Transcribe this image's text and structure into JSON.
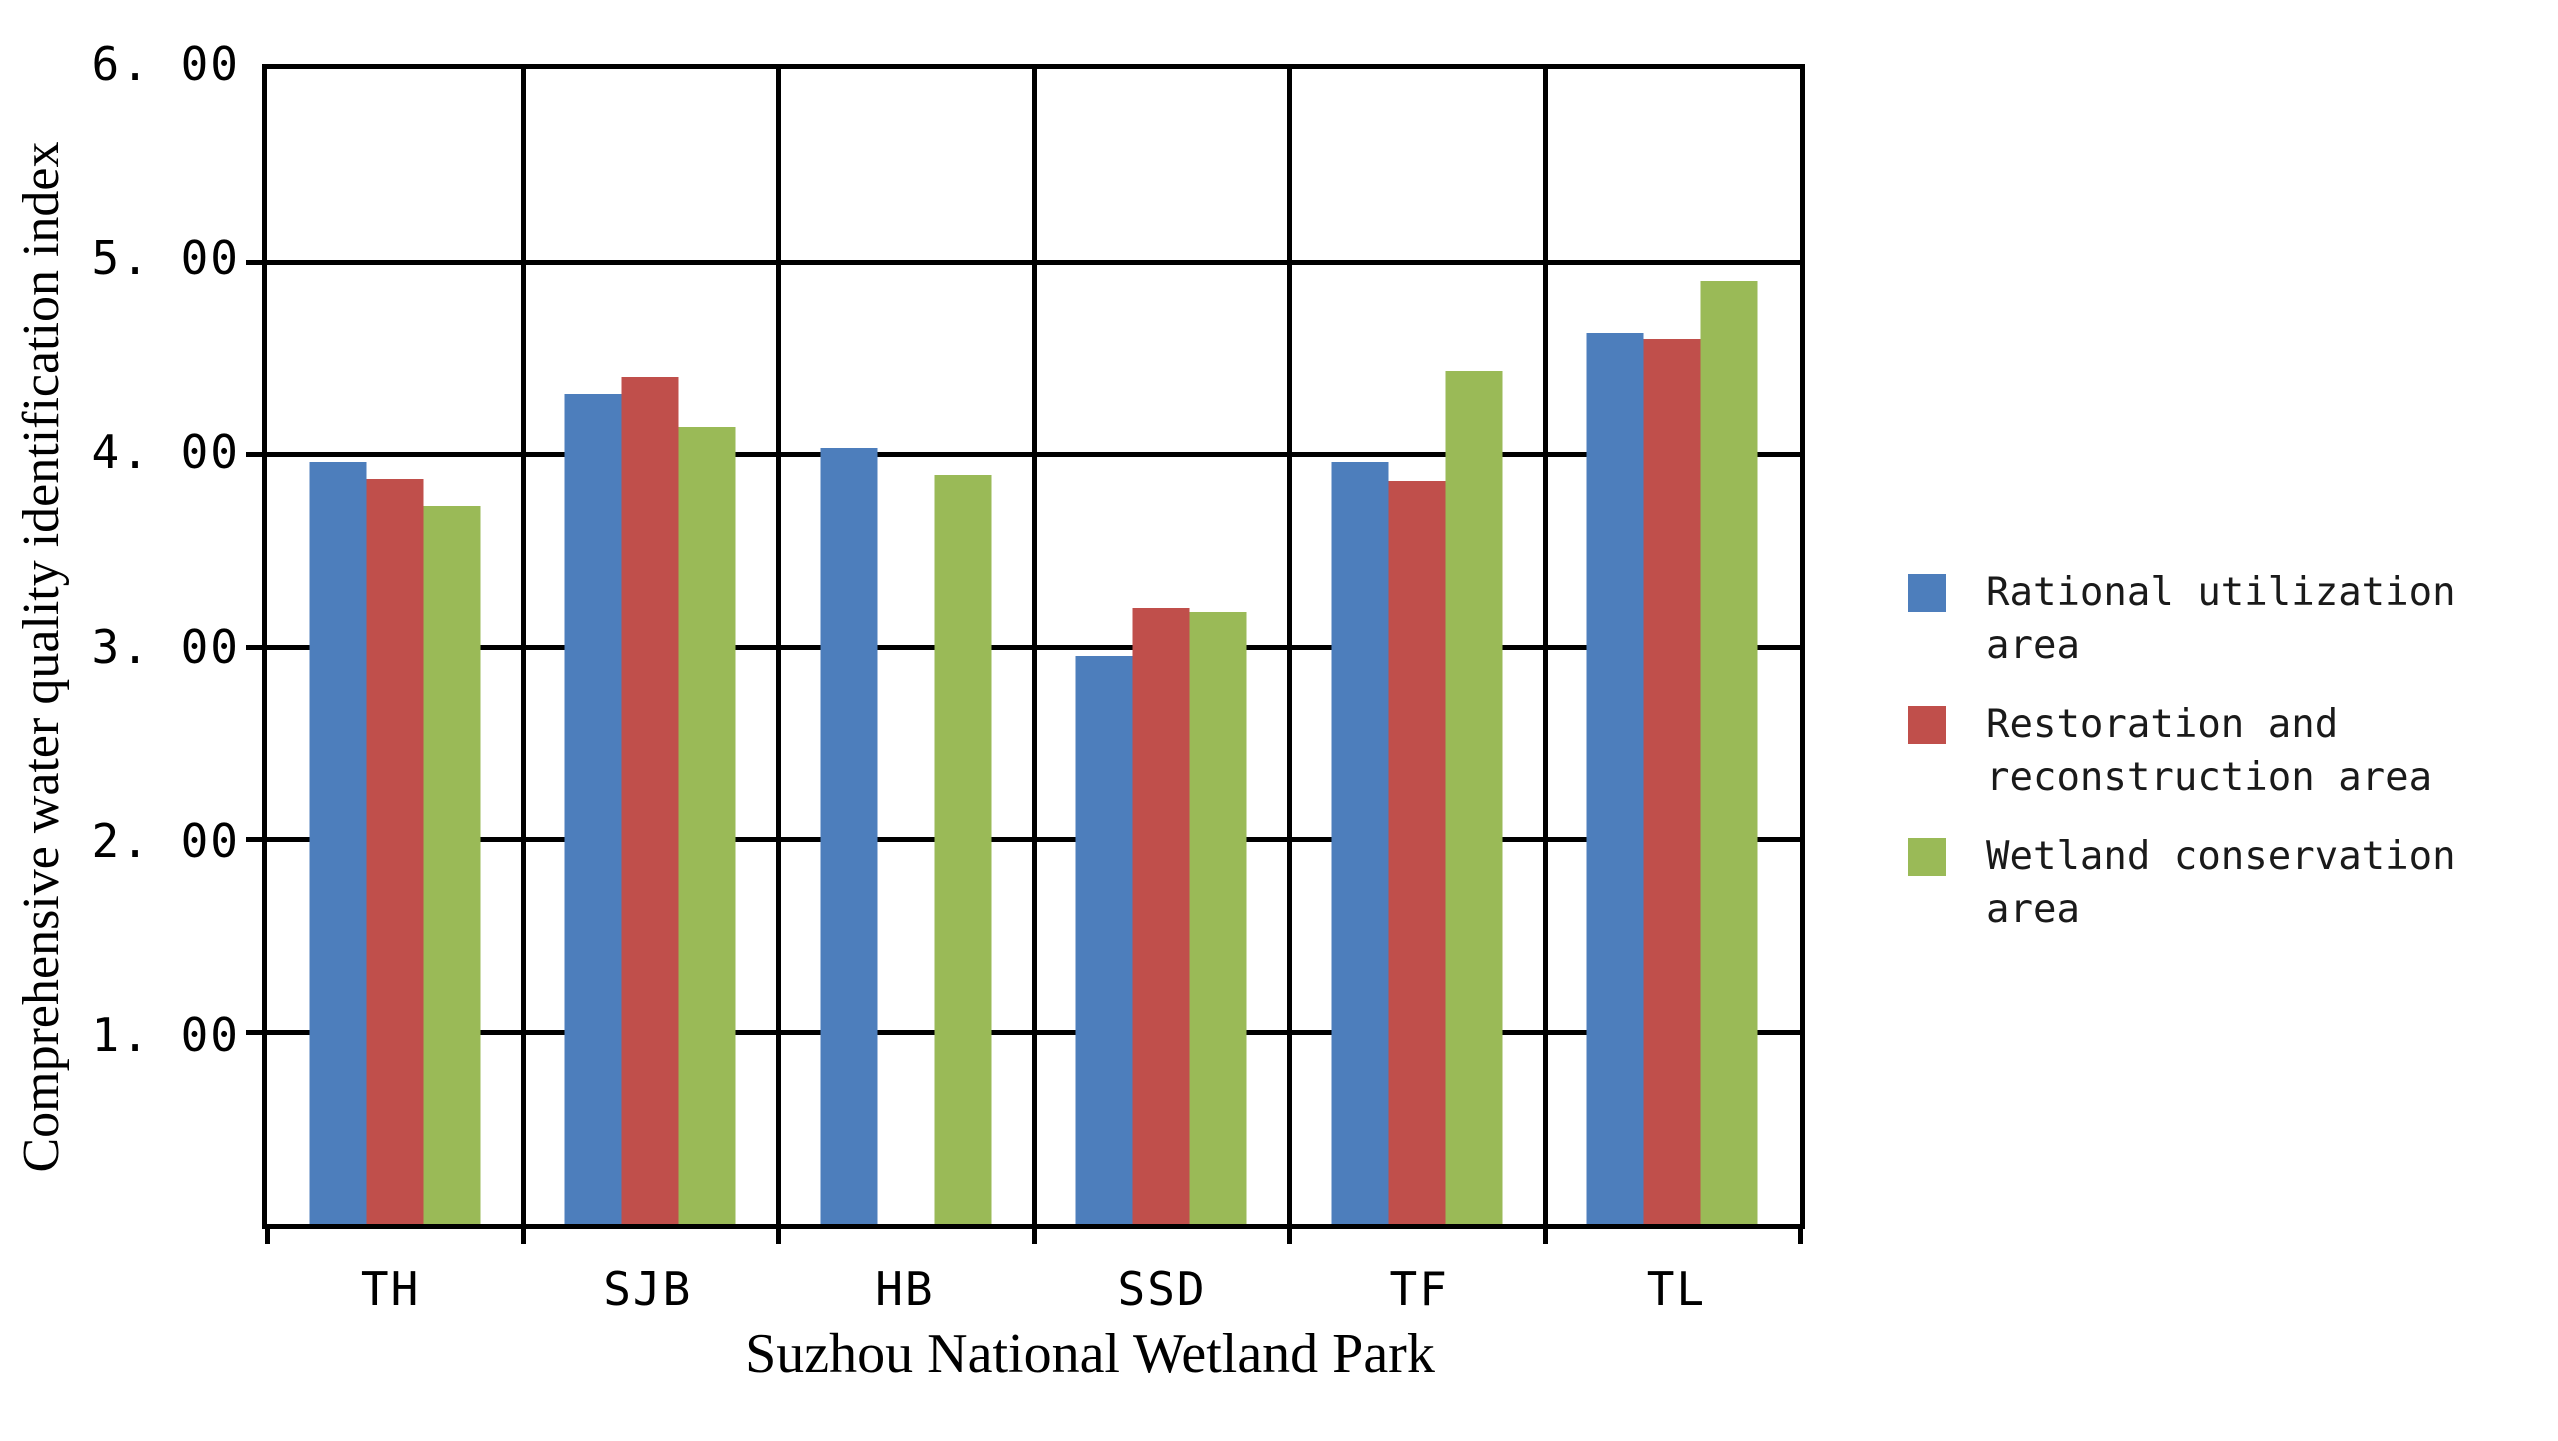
{
  "chart_data": {
    "type": "bar",
    "title": "",
    "xlabel": "Suzhou National Wetland Park",
    "ylabel": "Comprehensive water quality identification index",
    "categories": [
      "TH",
      "SJB",
      "HB",
      "SSD",
      "TF",
      "TL"
    ],
    "series": [
      {
        "name": "Rational utilization area",
        "legend_lines": [
          "Rational utilization",
          "area"
        ],
        "color": "#4D7EBC",
        "values": [
          3.96,
          4.31,
          4.03,
          2.95,
          3.96,
          4.63
        ]
      },
      {
        "name": "Restoration and reconstruction area",
        "legend_lines": [
          "Restoration and",
          "reconstruction area"
        ],
        "color": "#C04F4B",
        "values": [
          3.87,
          4.4,
          null,
          3.2,
          3.86,
          4.6
        ]
      },
      {
        "name": "Wetland conservation area",
        "legend_lines": [
          "Wetland conservation",
          "area"
        ],
        "color": "#9ABA57",
        "values": [
          3.73,
          4.14,
          3.89,
          3.18,
          4.43,
          4.9
        ]
      }
    ],
    "ylim": [
      0,
      6
    ],
    "ytick_step": 1,
    "ytick_labels": [
      "6. 00",
      "5. 00",
      "4. 00",
      "3. 00",
      "2. 00",
      "1. 00"
    ],
    "grid": true,
    "legend_position": "right",
    "axis_color": "#000000",
    "background_color": "#ffffff"
  }
}
